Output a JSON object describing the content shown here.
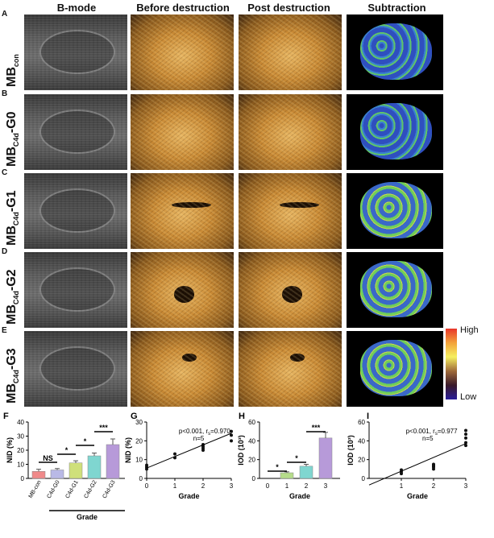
{
  "headers": {
    "bmode": "B-mode",
    "before": "Before destruction",
    "post": "Post destruction",
    "subtraction": "Subtraction"
  },
  "rows": [
    {
      "letter": "A",
      "label_main": "MB",
      "label_sub": "con",
      "label_tail": ""
    },
    {
      "letter": "B",
      "label_main": "MB",
      "label_sub": "C4d",
      "label_tail": "-G0"
    },
    {
      "letter": "C",
      "label_main": "MB",
      "label_sub": "C4d",
      "label_tail": "-G1"
    },
    {
      "letter": "D",
      "label_main": "MB",
      "label_sub": "C4d",
      "label_tail": "-G2"
    },
    {
      "letter": "E",
      "label_main": "MB",
      "label_sub": "C4d",
      "label_tail": "-G3"
    }
  ],
  "colorbar": {
    "high": "High",
    "low": "Low"
  },
  "panel_letters": {
    "F": "F",
    "G": "G",
    "H": "H",
    "I": "I"
  },
  "chart_data": [
    {
      "panel": "F",
      "type": "bar",
      "ylabel": "NID (%)",
      "xlabel": "Grade",
      "categories": [
        "MB-con",
        "C4d-G0",
        "C4d-G1",
        "C4d-G2",
        "C4d-G3"
      ],
      "values": [
        5,
        6,
        11,
        16,
        24
      ],
      "errors": [
        1.5,
        1,
        1.5,
        2,
        4
      ],
      "colors": [
        "#f08a8a",
        "#b9b9e6",
        "#cfe07a",
        "#7fd6d0",
        "#b79ad9"
      ],
      "ylim": [
        0,
        40
      ],
      "yticks": [
        "0",
        "10",
        "20",
        "30",
        "40"
      ],
      "significance": [
        "NS",
        "*",
        "*",
        "***"
      ]
    },
    {
      "panel": "G",
      "type": "scatter",
      "ylabel": "NID (%)",
      "xlabel": "Grade",
      "x": [
        0,
        0,
        0,
        1,
        1,
        2,
        2,
        2,
        2,
        3,
        3,
        3
      ],
      "y": [
        5,
        6,
        7,
        11,
        13,
        15,
        16,
        17,
        18,
        20,
        23,
        25
      ],
      "fit": [
        [
          0,
          5.5
        ],
        [
          3,
          24
        ]
      ],
      "xlim": [
        0,
        3
      ],
      "ylim": [
        0,
        30
      ],
      "xticks": [
        "0",
        "1",
        "2",
        "3"
      ],
      "yticks": [
        "0",
        "10",
        "20",
        "30"
      ],
      "annotation_line1": "p<0.001, r",
      "annotation_sub": "s",
      "annotation_tail": "=0.970",
      "annotation_line2": "n=5"
    },
    {
      "panel": "H",
      "type": "bar",
      "ylabel": "IOD (10³)",
      "xlabel": "Grade",
      "categories": [
        "0",
        "1",
        "2",
        "3"
      ],
      "values": [
        0,
        6,
        13,
        43
      ],
      "errors": [
        0,
        1,
        2,
        6
      ],
      "colors": [
        "#ffffff",
        "#b5dc8a",
        "#7fd6d0",
        "#b79ad9"
      ],
      "ylim": [
        0,
        60
      ],
      "yticks": [
        "0",
        "20",
        "40",
        "60"
      ],
      "significance": [
        "*",
        "*",
        "***"
      ]
    },
    {
      "panel": "I",
      "type": "scatter",
      "ylabel": "IOD (10³)",
      "xlabel": "Grade",
      "x": [
        1,
        1,
        1,
        2,
        2,
        2,
        2,
        2,
        3,
        3,
        3,
        3,
        3
      ],
      "y": [
        5,
        7,
        9,
        10,
        12,
        13,
        14,
        15,
        35,
        38,
        43,
        47,
        51
      ],
      "fit": [
        [
          0,
          -7
        ],
        [
          3,
          37
        ]
      ],
      "xlim": [
        0,
        3
      ],
      "ylim": [
        0,
        60
      ],
      "xticks": [
        "1",
        "2",
        "3"
      ],
      "yticks": [
        "0",
        "20",
        "40",
        "60"
      ],
      "annotation_line1": "p<0.001, r",
      "annotation_sub": "s",
      "annotation_tail": "=0.977",
      "annotation_line2": "n=5"
    }
  ]
}
